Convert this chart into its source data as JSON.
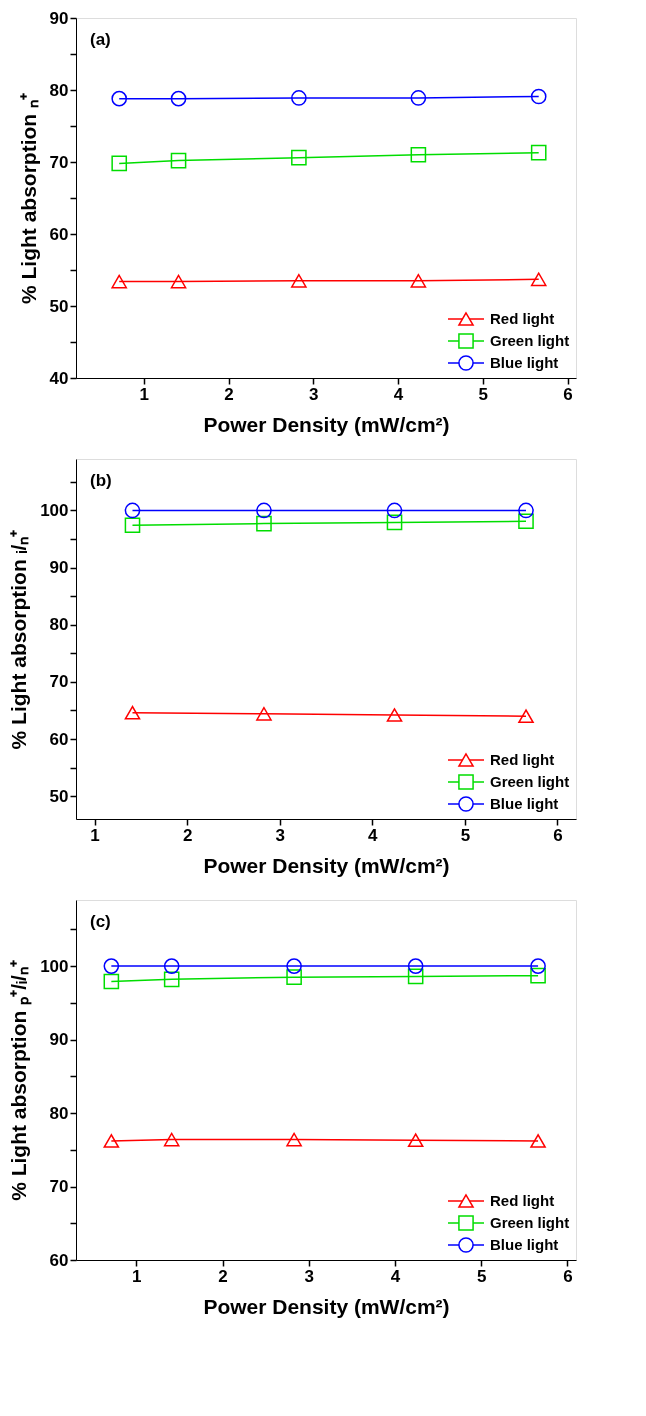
{
  "chart_data": [
    {
      "type": "line",
      "ylabel": "% Light absorption ₙ⁺",
      "xlabel": "Power Density (mW/cm²)",
      "annotations": [
        "(a)"
      ],
      "legend": "bottom right",
      "grid": false,
      "xlim": [
        0.2,
        6.1
      ],
      "xticks": [
        1,
        2,
        3,
        4,
        5,
        6
      ],
      "ylim": [
        40,
        90
      ],
      "yticks": [
        40,
        {
          "value": 45,
          "label": null
        },
        50,
        {
          "value": 55,
          "label": null
        },
        60,
        {
          "value": 65,
          "label": null
        },
        70,
        {
          "value": 75,
          "label": null
        },
        80,
        {
          "value": 85,
          "label": null
        },
        90
      ],
      "x": [
        0.71,
        1.41,
        2.83,
        4.24,
        5.66
      ],
      "series": [
        {
          "name": "Red light",
          "color": "#ff0000",
          "marker": "triangle",
          "values": [
            53.4,
            53.4,
            53.5,
            53.5,
            53.7
          ]
        },
        {
          "name": "Green light",
          "color": "#00dd00",
          "marker": "square",
          "values": [
            69.8,
            70.2,
            70.6,
            71.0,
            71.3
          ]
        },
        {
          "name": "Blue light",
          "color": "#0000ff",
          "marker": "circle",
          "values": [
            78.8,
            78.8,
            78.9,
            78.9,
            79.1
          ]
        }
      ]
    },
    {
      "type": "line",
      "ylabel": "% Light absorption ᵢ/ₙ⁺",
      "xlabel": "Power Density (mW/cm²)",
      "annotations": [
        "(b)"
      ],
      "legend": "bottom right",
      "grid": false,
      "xlim": [
        0.8,
        6.2
      ],
      "xticks": [
        1,
        2,
        3,
        4,
        5,
        6
      ],
      "ylim": [
        46,
        109
      ],
      "yticks": [
        50,
        {
          "value": 55,
          "label": null
        },
        60,
        {
          "value": 65,
          "label": null
        },
        70,
        {
          "value": 75,
          "label": null
        },
        80,
        {
          "value": 85,
          "label": null
        },
        90,
        {
          "value": 95,
          "label": null
        },
        100,
        {
          "value": 105,
          "label": null
        }
      ],
      "x": [
        1.41,
        2.83,
        4.24,
        5.66
      ],
      "series": [
        {
          "name": "Red light",
          "color": "#ff0000",
          "marker": "triangle",
          "values": [
            64.6,
            64.4,
            64.2,
            64.0
          ]
        },
        {
          "name": "Green light",
          "color": "#00dd00",
          "marker": "square",
          "values": [
            97.4,
            97.7,
            97.9,
            98.1
          ]
        },
        {
          "name": "Blue light",
          "color": "#0000ff",
          "marker": "circle",
          "values": [
            100,
            100,
            100,
            100
          ]
        }
      ]
    },
    {
      "type": "line",
      "ylabel": "% Light absorption ₚ⁺/ᵢ/ₙ⁺",
      "xlabel": "Power Density (mW/cm²)",
      "annotations": [
        "(c)"
      ],
      "legend": "bottom right",
      "grid": false,
      "xlim": [
        0.3,
        6.1
      ],
      "xticks": [
        1,
        2,
        3,
        4,
        5,
        6
      ],
      "ylim": [
        60,
        109
      ],
      "yticks": [
        60,
        {
          "value": 65,
          "label": null
        },
        70,
        {
          "value": 75,
          "label": null
        },
        80,
        {
          "value": 85,
          "label": null
        },
        90,
        {
          "value": 95,
          "label": null
        },
        100,
        {
          "value": 105,
          "label": null
        }
      ],
      "x": [
        0.71,
        1.41,
        2.83,
        4.24,
        5.66
      ],
      "series": [
        {
          "name": "Red light",
          "color": "#ff0000",
          "marker": "triangle",
          "values": [
            76.2,
            76.4,
            76.4,
            76.3,
            76.2
          ]
        },
        {
          "name": "Green light",
          "color": "#00dd00",
          "marker": "square",
          "values": [
            97.9,
            98.2,
            98.5,
            98.6,
            98.7
          ]
        },
        {
          "name": "Blue light",
          "color": "#0000ff",
          "marker": "circle",
          "values": [
            100,
            100,
            100,
            100,
            100
          ]
        }
      ]
    }
  ]
}
